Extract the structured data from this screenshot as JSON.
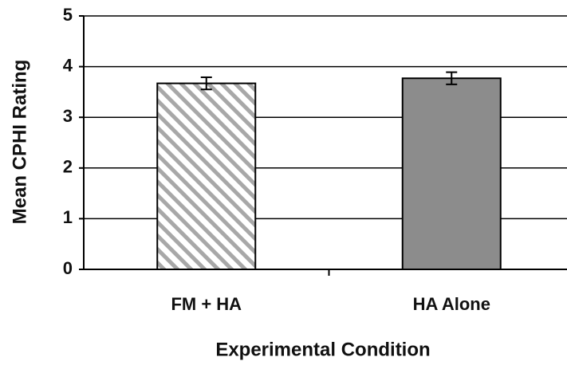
{
  "chart_data": {
    "type": "bar",
    "categories": [
      "FM + HA",
      "HA Alone"
    ],
    "values": [
      3.67,
      3.77
    ],
    "errors": [
      0.12,
      0.12
    ],
    "colors": [
      "#a8a8a8",
      "#8c8c8c"
    ],
    "patterns": [
      "hatch",
      "solid"
    ],
    "xlabel": "Experimental Condition",
    "ylabel": "Mean CPHI Rating",
    "ylim": [
      0,
      5
    ],
    "yticks": [
      0,
      1,
      2,
      3,
      4,
      5
    ],
    "grid": true
  }
}
